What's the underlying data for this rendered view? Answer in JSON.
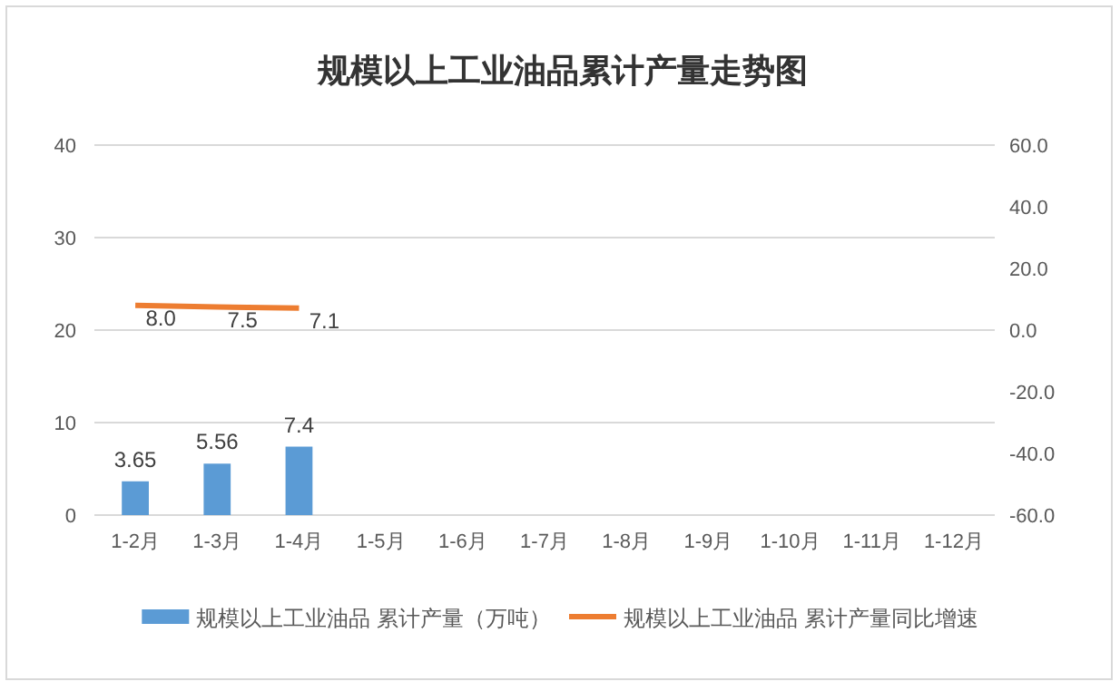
{
  "chart_data": {
    "type": "bar",
    "title": "规模以上工业油品累计产量走势图",
    "categories": [
      "1-2月",
      "1-3月",
      "1-4月",
      "1-5月",
      "1-6月",
      "1-7月",
      "1-8月",
      "1-9月",
      "1-10月",
      "1-11月",
      "1-12月"
    ],
    "series": [
      {
        "name": "规模以上工业油品 累计产量（万吨）",
        "color": "#5b9bd5",
        "values": [
          3.65,
          5.56,
          7.4,
          null,
          null,
          null,
          null,
          null,
          null,
          null,
          null
        ],
        "value_labels": [
          "3.65",
          "5.56",
          "7.4",
          null,
          null,
          null,
          null,
          null,
          null,
          null,
          null
        ]
      },
      {
        "name": "规模以上工业油品 累计产量同比增速",
        "type": "line",
        "axis": "y2",
        "color": "#ed7d31",
        "values": [
          8.0,
          7.5,
          7.1,
          null,
          null,
          null,
          null,
          null,
          null,
          null,
          null
        ],
        "value_labels": [
          "8.0",
          "7.5",
          "7.1",
          null,
          null,
          null,
          null,
          null,
          null,
          null,
          null
        ]
      }
    ],
    "ylim": [
      0,
      40
    ],
    "yticks": [
      0,
      10,
      20,
      30,
      40
    ],
    "y2lim": [
      -60,
      60
    ],
    "y2ticks": [
      {
        "value": -60,
        "label": "-60.0"
      },
      {
        "value": -40,
        "label": "-40.0"
      },
      {
        "value": -20,
        "label": "-20.0"
      },
      {
        "value": 0,
        "label": "0.0"
      },
      {
        "value": 20,
        "label": "20.0"
      },
      {
        "value": 40,
        "label": "40.0"
      },
      {
        "value": 60,
        "label": "60.0"
      }
    ],
    "grid": "y",
    "legend": "bottom",
    "marker": "none",
    "line_style": "solid"
  }
}
